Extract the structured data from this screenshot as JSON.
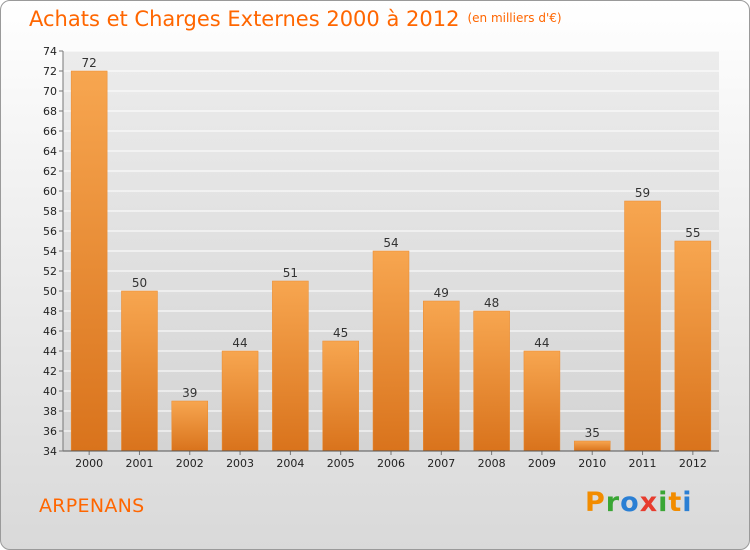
{
  "title": "Achats et Charges Externes 2000 à 2012",
  "unit": "(en milliers d'€)",
  "place": "ARPENANS",
  "logo": {
    "letters": [
      "P",
      "r",
      "o",
      "x",
      "i",
      "t",
      "i"
    ],
    "colors": [
      "#f28c00",
      "#3aa635",
      "#2a7fd4",
      "#e73c2e",
      "#3aa635",
      "#f28c00",
      "#2a7fd4"
    ]
  },
  "colors": {
    "title": "#ff6600",
    "bar_top": "#f7a650",
    "bar_bottom": "#d9731c",
    "grid": "#ffffff"
  },
  "chart_data": {
    "type": "bar",
    "title": "Achats et Charges Externes 2000 à 2012",
    "categories": [
      "2000",
      "2001",
      "2002",
      "2003",
      "2004",
      "2005",
      "2006",
      "2007",
      "2008",
      "2009",
      "2010",
      "2011",
      "2012"
    ],
    "values": [
      72,
      50,
      39,
      44,
      51,
      45,
      54,
      49,
      48,
      44,
      35,
      59,
      55
    ],
    "ylim": [
      34,
      74
    ],
    "ytick_step": 2,
    "grid": true,
    "xlabel": "",
    "ylabel": ""
  }
}
